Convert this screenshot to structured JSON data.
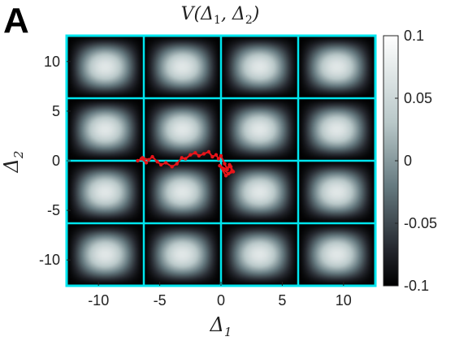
{
  "panel_label": "A",
  "colors": {
    "grid_lines": "#00e5ee",
    "trajectory": "#e8141a",
    "colormap_low": "#000000",
    "colormap_high": "#ffffff"
  },
  "chart_data": {
    "type": "heatmap",
    "title": "V(Δ1, Δ2)",
    "title_text": {
      "main": "V(Δ",
      "sub1": "1",
      "mid": ", Δ",
      "sub2": "2",
      "end": ")"
    },
    "xlabel_text": {
      "main": "Δ",
      "sub": "1"
    },
    "ylabel_text": {
      "main": "Δ",
      "sub": "2"
    },
    "xlim": [
      -12.6,
      12.6
    ],
    "ylim": [
      -12.6,
      12.6
    ],
    "x_ticks": [
      {
        "value": -10,
        "label": "-10"
      },
      {
        "value": -5,
        "label": "-5"
      },
      {
        "value": 0,
        "label": "0"
      },
      {
        "value": 5,
        "label": "5"
      },
      {
        "value": 10,
        "label": "10"
      }
    ],
    "y_ticks": [
      {
        "value": 10,
        "label": "10"
      },
      {
        "value": 5,
        "label": "5"
      },
      {
        "value": 0,
        "label": "0"
      },
      {
        "value": -5,
        "label": "-5"
      },
      {
        "value": -10,
        "label": "-10"
      }
    ],
    "colorbar": {
      "range": [
        -0.1,
        0.1
      ],
      "ticks": [
        {
          "value": 0.1,
          "label": "0.1"
        },
        {
          "value": 0.05,
          "label": "0.05"
        },
        {
          "value": 0,
          "label": "0"
        },
        {
          "value": -0.05,
          "label": "-0.05"
        },
        {
          "value": -0.1,
          "label": "-0.1"
        }
      ]
    },
    "field": {
      "form": "periodic bumps",
      "period_x": 6.3,
      "period_y": 6.3,
      "maxima_x": [
        -9.45,
        -3.15,
        3.15,
        9.45
      ],
      "maxima_y": [
        9.45,
        3.15,
        -3.15,
        -9.45
      ],
      "max_value": 0.07,
      "min_value": -0.1
    },
    "cell_boundaries_x": [
      -6.3,
      0,
      6.3
    ],
    "cell_boundaries_y": [
      -6.3,
      0,
      6.3
    ],
    "trajectory": {
      "x": [
        -6.8,
        -6.5,
        -6.1,
        -6.4,
        -5.9,
        -5.6,
        -5.2,
        -4.9,
        -4.5,
        -4.0,
        -3.6,
        -3.2,
        -2.9,
        -2.5,
        -2.1,
        -1.8,
        -1.4,
        -1.0,
        -0.7,
        -0.4,
        -0.2,
        0.0,
        0.3,
        0.5,
        0.7,
        0.9,
        0.6,
        0.2,
        0.8,
        1.0,
        0.4,
        -0.1,
        0.5
      ],
      "y": [
        0.0,
        0.2,
        -0.2,
        0.3,
        0.1,
        0.4,
        -0.1,
        -0.4,
        -0.2,
        -0.6,
        -0.3,
        0.3,
        0.2,
        0.6,
        0.8,
        0.5,
        0.7,
        0.9,
        0.4,
        0.6,
        0.2,
        0.5,
        -0.3,
        -0.8,
        -0.4,
        -1.0,
        -1.3,
        -0.9,
        -0.6,
        -1.1,
        -1.5,
        -0.5,
        -0.9
      ]
    }
  }
}
